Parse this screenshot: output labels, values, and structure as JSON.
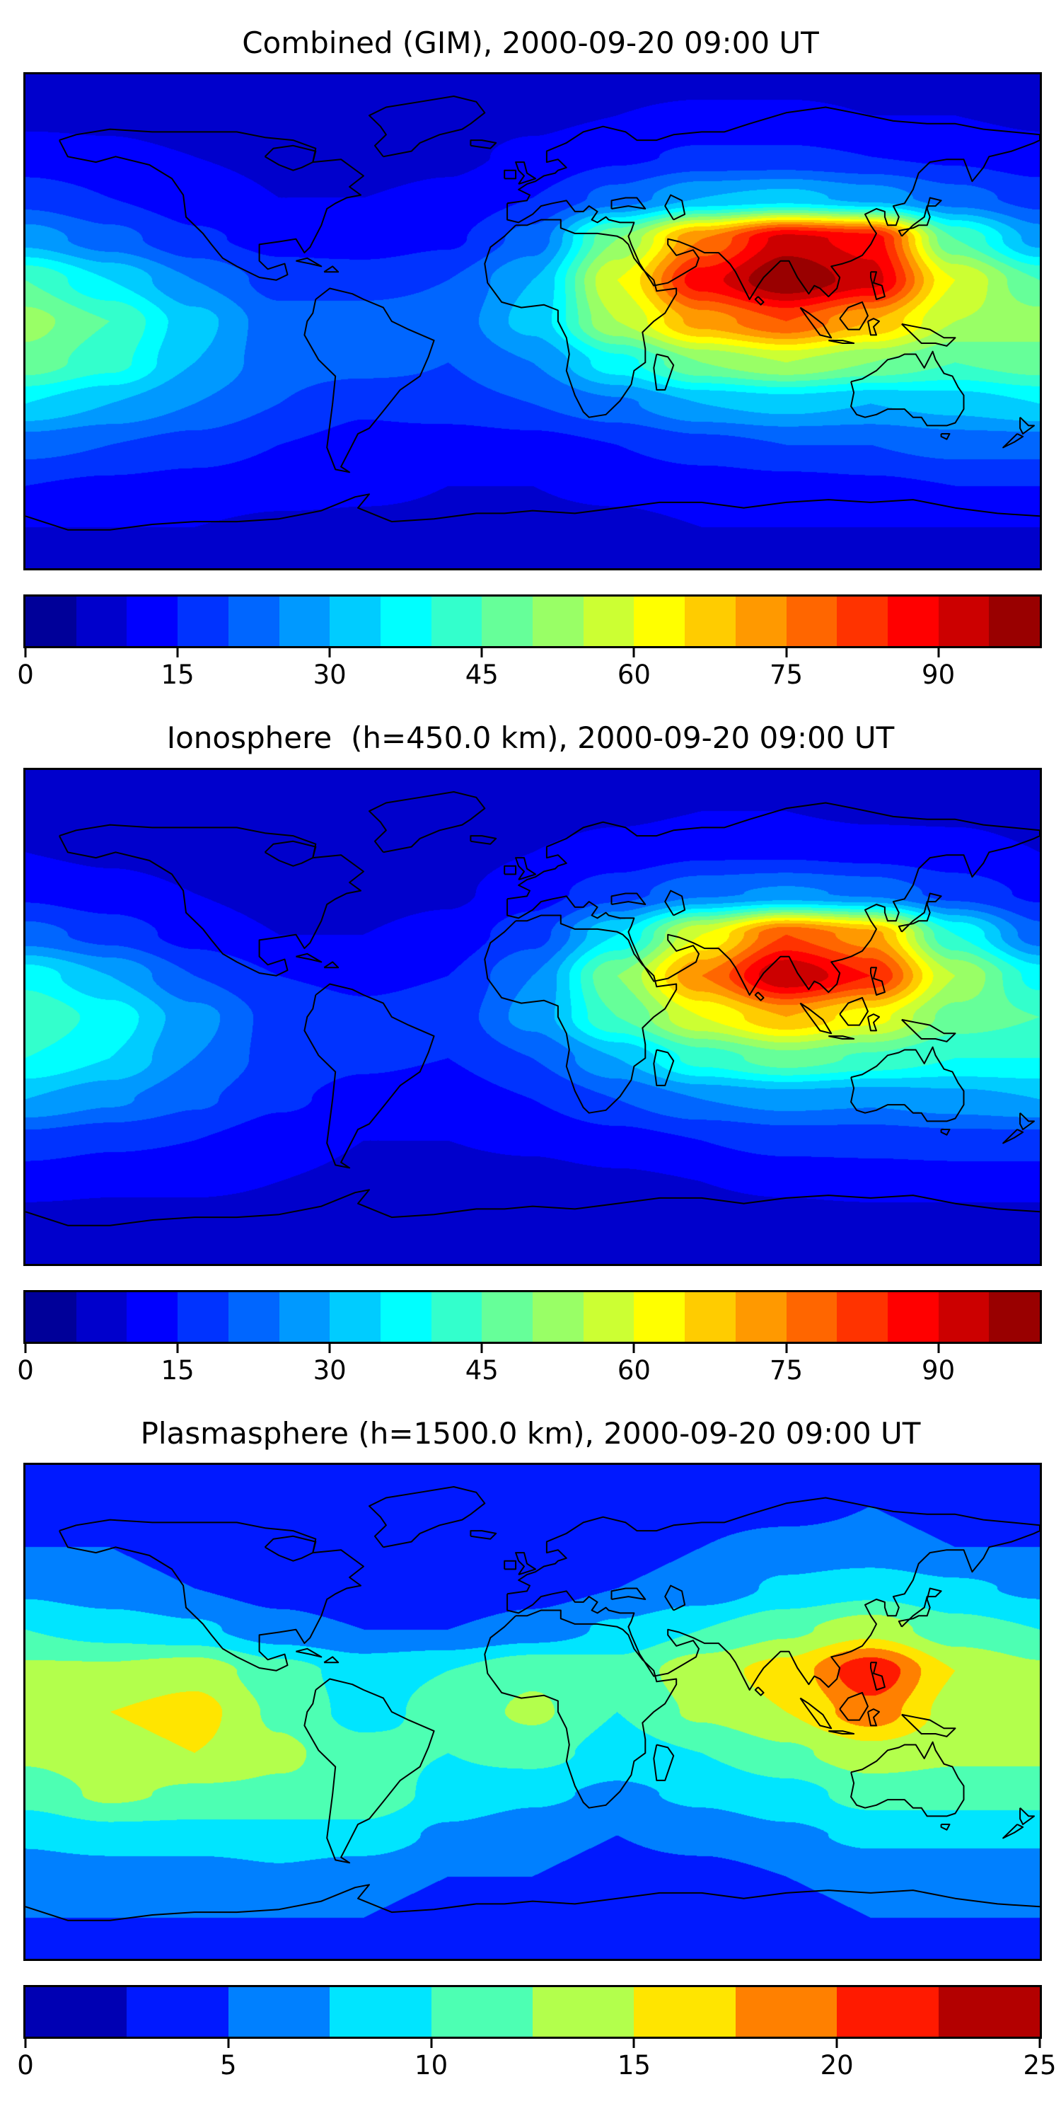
{
  "figure": {
    "background": "#ffffff",
    "frame_color": "#000000",
    "coastline_color": "#000000"
  },
  "chart_data": [
    {
      "type": "heatmap",
      "subtype": "filled-contour-world-map",
      "title": "Combined (GIM), 2000-09-20 09:00 UT",
      "projection": "equirectangular",
      "colormap": "jet",
      "value_range": [
        0,
        100
      ],
      "contour_step": 5,
      "colorbar_ticks": [
        0,
        15,
        30,
        45,
        60,
        75,
        90
      ],
      "lon": [
        -180,
        -150,
        -120,
        -90,
        -60,
        -30,
        0,
        30,
        60,
        90,
        120,
        150,
        180
      ],
      "lat": [
        90,
        75,
        60,
        45,
        30,
        15,
        0,
        -15,
        -30,
        -45,
        -60,
        -75,
        -90
      ],
      "values": [
        [
          8,
          8,
          8,
          8,
          8,
          8,
          8,
          8,
          8,
          8,
          8,
          8,
          8
        ],
        [
          9,
          9,
          8,
          8,
          8,
          8,
          9,
          10,
          11,
          11,
          10,
          10,
          9
        ],
        [
          12,
          11,
          10,
          9,
          8,
          9,
          11,
          14,
          16,
          16,
          15,
          14,
          12
        ],
        [
          18,
          15,
          12,
          10,
          10,
          11,
          15,
          22,
          30,
          32,
          28,
          22,
          18
        ],
        [
          28,
          22,
          16,
          13,
          12,
          14,
          22,
          50,
          75,
          92,
          88,
          45,
          28
        ],
        [
          45,
          35,
          25,
          18,
          18,
          20,
          30,
          60,
          88,
          100,
          92,
          60,
          45
        ],
        [
          52,
          45,
          32,
          22,
          22,
          22,
          32,
          55,
          72,
          80,
          70,
          55,
          52
        ],
        [
          48,
          42,
          30,
          22,
          22,
          20,
          25,
          38,
          50,
          55,
          50,
          45,
          48
        ],
        [
          35,
          30,
          25,
          20,
          16,
          18,
          20,
          24,
          30,
          32,
          30,
          32,
          35
        ],
        [
          22,
          20,
          18,
          15,
          13,
          12,
          13,
          15,
          18,
          20,
          20,
          22,
          22
        ],
        [
          15,
          14,
          13,
          12,
          11,
          10,
          10,
          11,
          12,
          13,
          14,
          15,
          15
        ],
        [
          10,
          10,
          10,
          9,
          9,
          9,
          9,
          9,
          10,
          10,
          10,
          10,
          10
        ],
        [
          8,
          8,
          8,
          8,
          8,
          8,
          8,
          8,
          8,
          8,
          8,
          8,
          8
        ]
      ]
    },
    {
      "type": "heatmap",
      "subtype": "filled-contour-world-map",
      "title": "Ionosphere  (h=450.0 km), 2000-09-20 09:00 UT",
      "projection": "equirectangular",
      "colormap": "jet",
      "value_range": [
        0,
        100
      ],
      "contour_step": 5,
      "colorbar_ticks": [
        0,
        15,
        30,
        45,
        60,
        75,
        90
      ],
      "lon": [
        -180,
        -150,
        -120,
        -90,
        -60,
        -30,
        0,
        30,
        60,
        90,
        120,
        150,
        180
      ],
      "lat": [
        90,
        75,
        60,
        45,
        30,
        15,
        0,
        -15,
        -30,
        -45,
        -60,
        -75,
        -90
      ],
      "values": [
        [
          7,
          7,
          7,
          7,
          7,
          7,
          7,
          7,
          7,
          7,
          7,
          7,
          7
        ],
        [
          8,
          8,
          7,
          7,
          7,
          7,
          8,
          9,
          10,
          10,
          9,
          9,
          8
        ],
        [
          10,
          9,
          8,
          7,
          7,
          8,
          10,
          12,
          14,
          14,
          13,
          12,
          10
        ],
        [
          14,
          12,
          10,
          8,
          8,
          9,
          13,
          18,
          24,
          26,
          24,
          18,
          14
        ],
        [
          22,
          18,
          13,
          10,
          10,
          12,
          18,
          35,
          60,
          80,
          72,
          40,
          22
        ],
        [
          38,
          30,
          20,
          15,
          14,
          15,
          25,
          50,
          75,
          95,
          85,
          55,
          38
        ],
        [
          45,
          38,
          27,
          18,
          16,
          17,
          27,
          45,
          60,
          70,
          62,
          48,
          45
        ],
        [
          40,
          35,
          25,
          18,
          16,
          15,
          20,
          30,
          42,
          48,
          44,
          40,
          40
        ],
        [
          30,
          26,
          21,
          16,
          13,
          12,
          15,
          20,
          25,
          27,
          26,
          28,
          30
        ],
        [
          18,
          16,
          15,
          12,
          10,
          10,
          11,
          13,
          15,
          17,
          17,
          18,
          18
        ],
        [
          12,
          11,
          11,
          10,
          9,
          8,
          8,
          9,
          10,
          11,
          12,
          12,
          12
        ],
        [
          8,
          8,
          8,
          8,
          7,
          7,
          7,
          7,
          8,
          8,
          8,
          8,
          8
        ],
        [
          7,
          7,
          7,
          7,
          7,
          7,
          7,
          7,
          7,
          7,
          7,
          7,
          7
        ]
      ]
    },
    {
      "type": "heatmap",
      "subtype": "filled-contour-world-map",
      "title": "Plasmasphere (h=1500.0 km), 2000-09-20 09:00 UT",
      "projection": "equirectangular",
      "colormap": "jet",
      "value_range": [
        0,
        25
      ],
      "contour_step": 2.5,
      "colorbar_ticks": [
        0,
        5,
        10,
        15,
        20,
        25
      ],
      "lon": [
        -180,
        -150,
        -120,
        -90,
        -60,
        -30,
        0,
        30,
        60,
        90,
        120,
        150,
        180
      ],
      "lat": [
        90,
        75,
        60,
        45,
        30,
        15,
        0,
        -15,
        -30,
        -45,
        -60,
        -75,
        -90
      ],
      "values": [
        [
          4,
          4,
          4,
          4,
          4,
          4,
          4,
          4,
          4,
          4,
          4,
          4,
          4
        ],
        [
          4,
          4,
          4,
          4,
          4,
          4,
          4,
          4,
          4,
          4,
          5,
          4,
          4
        ],
        [
          5,
          5,
          4,
          4,
          3,
          3,
          3,
          4,
          5,
          6,
          6,
          5,
          5
        ],
        [
          7,
          6,
          5,
          4,
          3,
          3,
          4,
          5,
          6,
          8,
          9,
          8,
          7
        ],
        [
          10,
          9,
          8,
          6,
          5,
          5,
          6,
          8,
          10,
          12,
          14,
          11,
          10
        ],
        [
          13,
          13,
          14,
          11,
          9,
          10,
          12,
          11,
          14,
          16,
          22,
          15,
          13
        ],
        [
          14,
          15,
          16,
          12,
          9,
          11,
          13,
          10,
          13,
          15,
          19,
          14,
          14
        ],
        [
          13,
          14,
          15,
          13,
          11,
          10,
          11,
          9,
          10,
          12,
          14,
          13,
          13
        ],
        [
          11,
          13,
          12,
          12,
          12,
          9,
          8,
          7,
          8,
          9,
          11,
          11,
          11
        ],
        [
          8,
          9,
          9,
          9,
          9,
          7,
          6,
          5,
          6,
          7,
          8,
          8,
          8
        ],
        [
          6,
          6,
          6,
          7,
          6,
          5,
          5,
          4,
          4,
          5,
          6,
          6,
          6
        ],
        [
          5,
          5,
          5,
          5,
          5,
          4,
          4,
          4,
          4,
          4,
          5,
          5,
          5
        ],
        [
          4,
          4,
          4,
          4,
          4,
          4,
          4,
          4,
          4,
          4,
          4,
          4,
          4
        ]
      ]
    }
  ]
}
